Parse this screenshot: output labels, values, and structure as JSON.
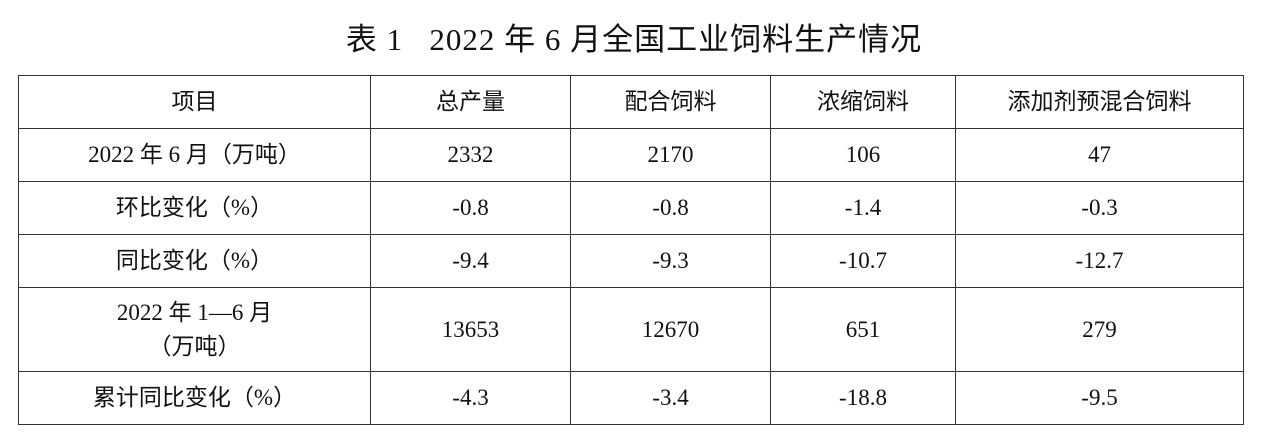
{
  "title": "表 1   2022 年 6 月全国工业饲料生产情况",
  "table": {
    "header": [
      "项目",
      "总产量",
      "配合饲料",
      "浓缩饲料",
      "添加剂预混合饲料"
    ],
    "rows": [
      [
        "2022 年 6 月（万吨）",
        "2332",
        "2170",
        "106",
        "47"
      ],
      [
        "环比变化（%）",
        "-0.8",
        "-0.8",
        "-1.4",
        "-0.3"
      ],
      [
        "同比变化（%）",
        "-9.4",
        "-9.3",
        "-10.7",
        "-12.7"
      ],
      [
        "2022 年 1—6 月\n（万吨）",
        "13653",
        "12670",
        "651",
        "279"
      ],
      [
        "累计同比变化（%）",
        "-4.3",
        "-3.4",
        "-18.8",
        "-9.5"
      ]
    ]
  }
}
